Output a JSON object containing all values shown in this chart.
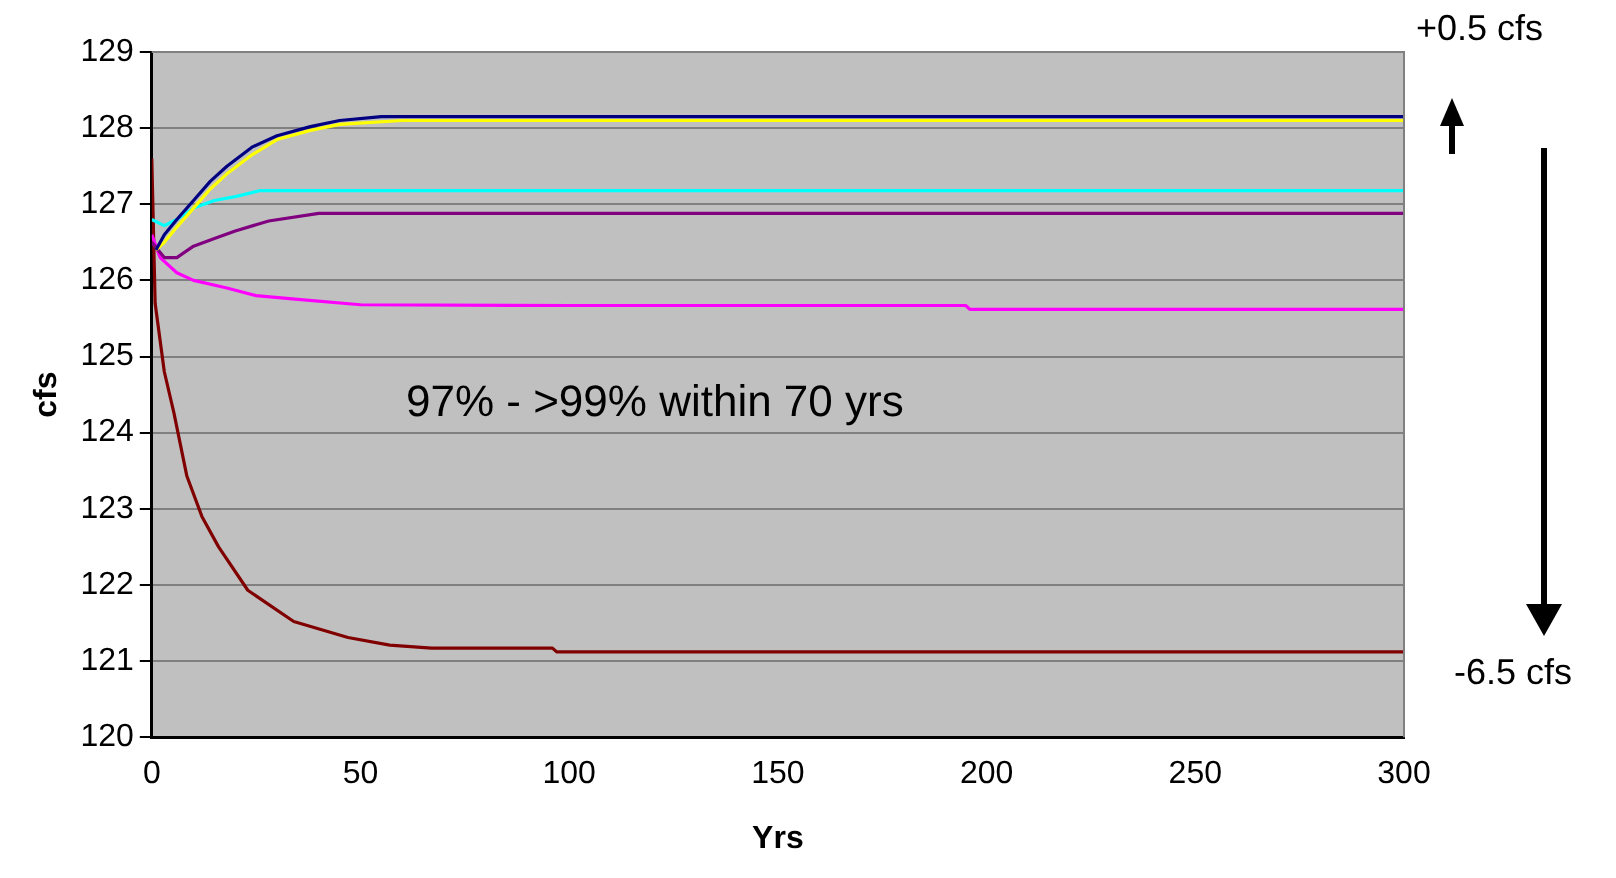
{
  "chart_data": {
    "type": "line",
    "xlabel": "Yrs",
    "ylabel": "cfs",
    "xlim": [
      0,
      300
    ],
    "xticks": [
      0,
      50,
      100,
      150,
      200,
      250,
      300
    ],
    "ylim": [
      120,
      129
    ],
    "yticks": [
      120,
      121,
      122,
      123,
      124,
      125,
      126,
      127,
      128,
      129
    ],
    "grid": "y",
    "legend": false,
    "marker": "none",
    "line_style": "solid",
    "annotations": [
      "97% - >99% within 70 yrs",
      "+0.5 cfs",
      "-6.5 cfs"
    ],
    "series": [
      {
        "color": "#000080",
        "x": [
          1,
          3,
          6,
          10,
          14,
          18,
          24,
          30,
          38,
          45,
          55,
          100,
          200,
          300
        ],
        "values": [
          126.4,
          126.6,
          126.8,
          127.05,
          127.3,
          127.5,
          127.75,
          127.9,
          128.02,
          128.1,
          128.15,
          128.15,
          128.15,
          128.15
        ]
      },
      {
        "color": "#ffff00",
        "x": [
          1,
          3,
          6,
          10,
          14,
          18,
          24,
          30,
          38,
          45,
          60,
          100,
          200,
          300
        ],
        "values": [
          126.4,
          126.5,
          126.7,
          126.95,
          127.2,
          127.4,
          127.65,
          127.85,
          127.97,
          128.05,
          128.1,
          128.1,
          128.1,
          128.1
        ]
      },
      {
        "color": "#00ffff",
        "x": [
          0,
          3,
          6,
          10,
          15,
          20,
          26,
          100,
          200,
          300
        ],
        "values": [
          126.8,
          126.72,
          126.8,
          126.95,
          127.05,
          127.1,
          127.18,
          127.18,
          127.18,
          127.18
        ]
      },
      {
        "color": "#800080",
        "x": [
          0,
          3,
          6,
          10,
          15,
          20,
          28,
          40,
          100,
          200,
          300
        ],
        "values": [
          126.5,
          126.3,
          126.3,
          126.45,
          126.55,
          126.65,
          126.78,
          126.88,
          126.88,
          126.88,
          126.88
        ]
      },
      {
        "color": "#ff00ff",
        "x": [
          0,
          2,
          6,
          10,
          18,
          25,
          35,
          50,
          100,
          195,
          196,
          300
        ],
        "values": [
          126.6,
          126.3,
          126.1,
          126.0,
          125.9,
          125.8,
          125.75,
          125.68,
          125.67,
          125.67,
          125.62,
          125.62
        ]
      },
      {
        "color": "#800000",
        "x": [
          0,
          0.8,
          3,
          5.3,
          8.4,
          12,
          16,
          23,
          34,
          47,
          57,
          67,
          96,
          97,
          200,
          300
        ],
        "values": [
          127.6,
          125.7,
          124.8,
          124.26,
          123.43,
          122.9,
          122.5,
          121.93,
          121.52,
          121.31,
          121.21,
          121.17,
          121.17,
          121.12,
          121.12,
          121.12
        ]
      }
    ]
  }
}
